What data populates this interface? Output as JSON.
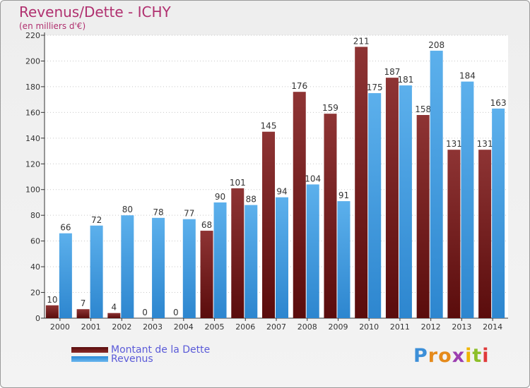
{
  "title": "Revenus/Dette - ICHY",
  "subtitle": "(en milliers d'€)",
  "colors": {
    "title": "#b0306f",
    "dette": "#7a1e1e",
    "revenus": "#3a9ae0",
    "legend_text": "#5a5ad8"
  },
  "legend": {
    "dette_label": "Montant de la Dette",
    "revenus_label": "Revenus"
  },
  "logo": {
    "letters": [
      "P",
      "r",
      "o",
      "x",
      "i",
      "t",
      "i"
    ],
    "colors": [
      "#3c8fd8",
      "#e58a1b",
      "#e58a1b",
      "#9c3fb0",
      "#f0b400",
      "#8dbf2a",
      "#e03a3a"
    ]
  },
  "chart_data": {
    "type": "bar",
    "title": "Revenus/Dette - ICHY",
    "subtitle": "(en milliers d'€)",
    "categories": [
      "2000",
      "2001",
      "2002",
      "2003",
      "2004",
      "2005",
      "2006",
      "2007",
      "2008",
      "2009",
      "2010",
      "2011",
      "2012",
      "2013",
      "2014"
    ],
    "series": [
      {
        "name": "Montant de la Dette",
        "values": [
          10,
          7,
          4,
          0,
          0,
          68,
          101,
          145,
          176,
          159,
          211,
          187,
          158,
          131,
          131
        ]
      },
      {
        "name": "Revenus",
        "values": [
          66,
          72,
          80,
          78,
          77,
          90,
          88,
          94,
          104,
          91,
          175,
          181,
          208,
          184,
          163
        ]
      }
    ],
    "ylim": [
      0,
      220
    ],
    "yticks": [
      0,
      20,
      40,
      60,
      80,
      100,
      120,
      140,
      160,
      180,
      200,
      220
    ],
    "grid": true,
    "legend_position": "bottom-left"
  }
}
